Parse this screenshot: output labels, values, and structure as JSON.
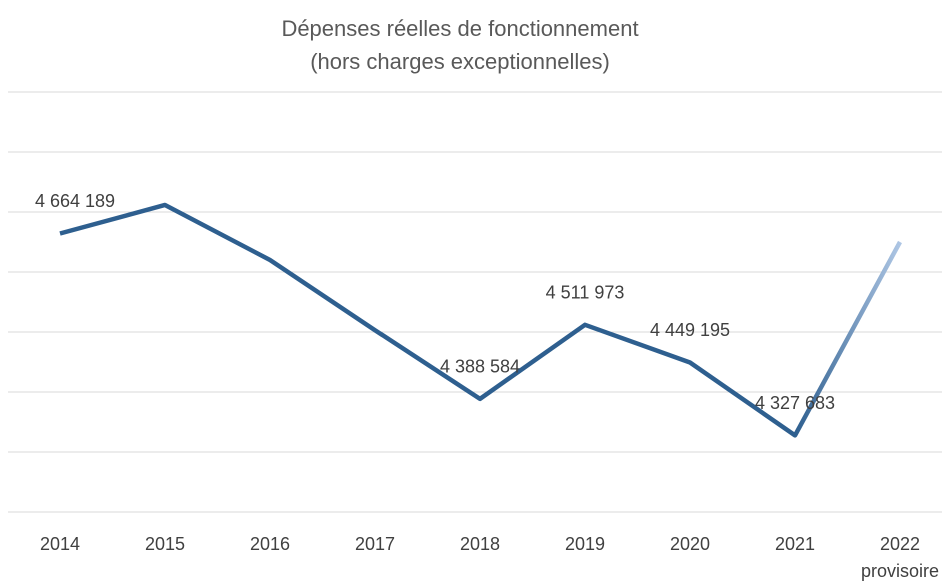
{
  "chart_data": {
    "type": "line",
    "title": "Dépenses réelles de fonctionnement",
    "subtitle": "(hors charges exceptionnelles)",
    "categories": [
      "2014",
      "2015",
      "2016",
      "2017",
      "2018",
      "2019",
      "2020",
      "2021",
      "2022\nprovisoire"
    ],
    "series": [
      {
        "name": "Dépenses réelles de fonctionnement",
        "color": "#2e5f8f",
        "provisional_color": "#aec6e4",
        "values": [
          4664189,
          4711700,
          4620000,
          4503000,
          4388584,
          4511973,
          4449195,
          4327683,
          4650000
        ],
        "value_labels": [
          "4 664 189",
          null,
          null,
          null,
          "4 388 584",
          "4 511 973",
          "4 449 195",
          "4 327 683",
          null
        ]
      }
    ],
    "ylim": [
      4200000,
      4900000
    ],
    "yticks": [
      4200000,
      4300000,
      4400000,
      4500000,
      4600000,
      4700000,
      4800000,
      4900000
    ],
    "grid": true
  }
}
